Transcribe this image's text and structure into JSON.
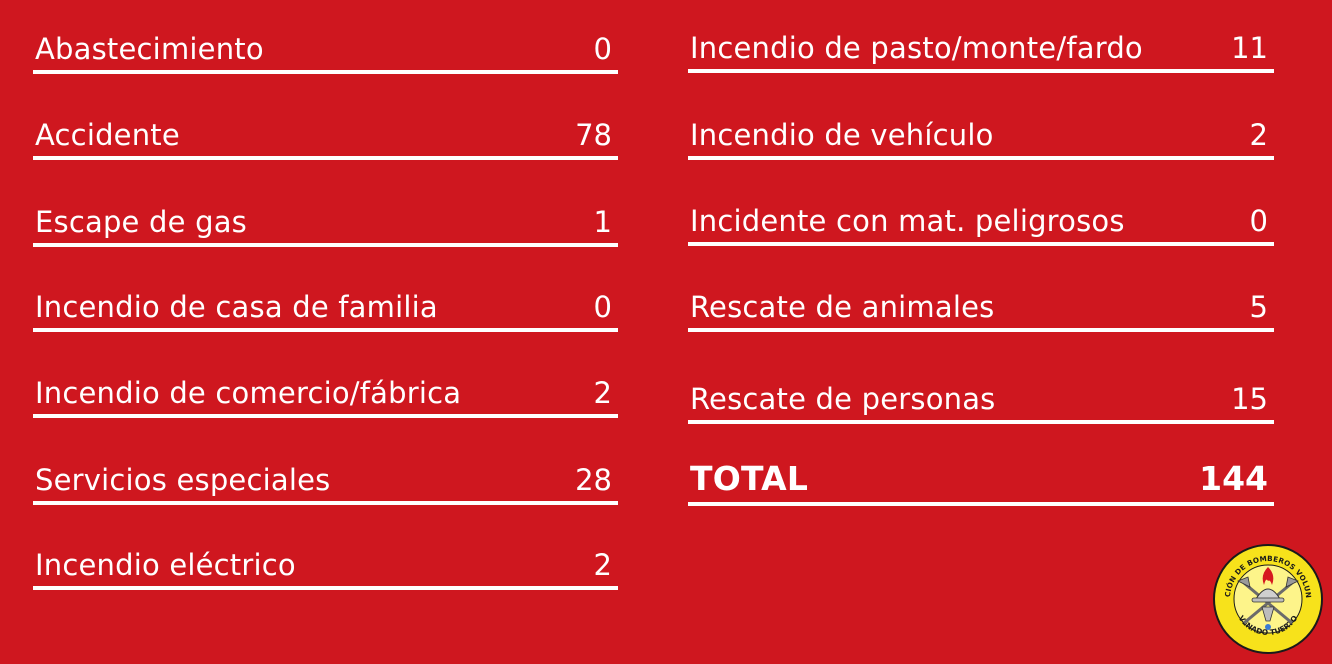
{
  "left_items": [
    {
      "label": "Abastecimiento",
      "value": "0"
    },
    {
      "label": "Accidente",
      "value": "78"
    },
    {
      "label": "Escape de gas",
      "value": "1"
    },
    {
      "label": "Incendio de casa de familia",
      "value": "0"
    },
    {
      "label": "Incendio de comercio/fábrica",
      "value": "2"
    },
    {
      "label": "Servicios especiales",
      "value": "28"
    },
    {
      "label": "Incendio eléctrico",
      "value": "2"
    }
  ],
  "right_items": [
    {
      "label": "Incendio de pasto/monte/fardo",
      "value": "11"
    },
    {
      "label": "Incendio de vehículo",
      "value": "2"
    },
    {
      "label": "Incidente con mat. peligrosos",
      "value": "0"
    },
    {
      "label": "Rescate de animales",
      "value": "5"
    },
    {
      "label": "Rescate de personas",
      "value": "15"
    }
  ],
  "total": {
    "label": "TOTAL",
    "value": "144"
  },
  "logo": {
    "top_text": "ASOCIACIÓN DE BOMBEROS VOLUNTARIOS",
    "bottom_text": "VENADO TUERTO"
  },
  "colors": {
    "background": "#cf171f",
    "text": "#ffffff",
    "logo_yellow": "#f7e21b"
  }
}
